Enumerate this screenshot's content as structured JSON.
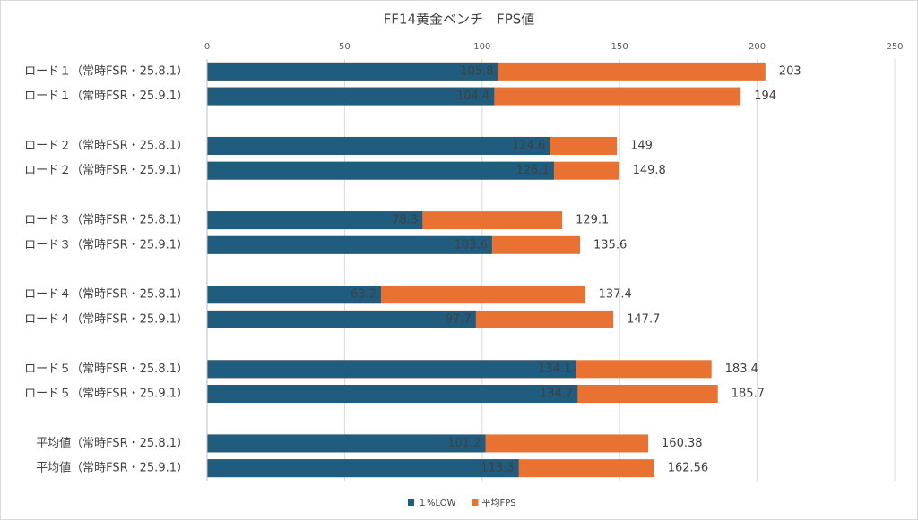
{
  "chart_data": {
    "type": "overlap-bar",
    "title": "FF14黄金ベンチ　FPS値",
    "categories": [
      "ロード１（常時FSR・25.8.1）",
      "ロード１（常時FSR・25.9.1）",
      null,
      "ロード２（常時FSR・25.8.1）",
      "ロード２（常時FSR・25.9.1）",
      null,
      "ロード３（常時FSR・25.8.1）",
      "ロード３（常時FSR・25.9.1）",
      null,
      "ロード４（常時FSR・25.8.1）",
      "ロード４（常時FSR・25.9.1）",
      null,
      "ロード５（常時FSR・25.8.1）",
      "ロード５（常時FSR・25.9.1）",
      null,
      "平均値（常時FSR・25.8.1）",
      "平均値（常時FSR・25.9.1）"
    ],
    "series": [
      {
        "name": "１%LOW",
        "color": "#1f5c7e",
        "values": [
          105.8,
          104.4,
          null,
          124.6,
          126.1,
          null,
          78.3,
          103.6,
          null,
          63.2,
          97.7,
          null,
          134.1,
          134.7,
          null,
          101.2,
          113.3
        ]
      },
      {
        "name": "平均FPS",
        "color": "#e97132",
        "values": [
          203,
          194,
          null,
          149,
          149.8,
          null,
          129.1,
          135.6,
          null,
          137.4,
          147.7,
          null,
          183.4,
          185.7,
          null,
          160.38,
          162.56
        ]
      }
    ],
    "xlim": [
      0,
      250
    ],
    "xticks": [
      0,
      50,
      100,
      150,
      200,
      250
    ],
    "grid": true,
    "legend": "bottom"
  }
}
